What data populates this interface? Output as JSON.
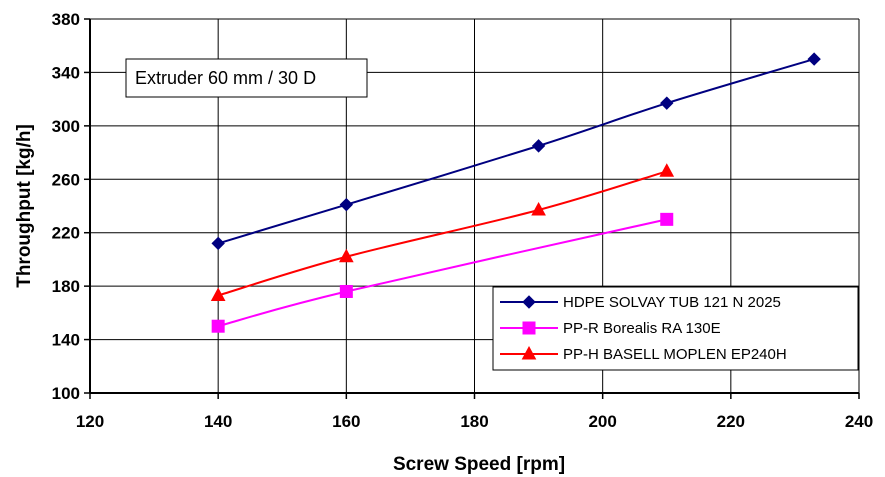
{
  "chart_data": {
    "type": "line",
    "title": "",
    "xlabel": "Screw Speed [rpm]",
    "ylabel": "Throughput [kg/h]",
    "xlim": [
      120,
      240
    ],
    "ylim": [
      100,
      380
    ],
    "xticks": [
      "120",
      "140",
      "160",
      "180",
      "200",
      "220",
      "240"
    ],
    "yticks": [
      "100",
      "140",
      "180",
      "220",
      "260",
      "300",
      "340",
      "380"
    ],
    "grid": true,
    "legend_position": "bottom-right",
    "annotation": "Extruder 60 mm / 30 D",
    "series": [
      {
        "name": "HDPE SOLVAY TUB 121 N 2025",
        "color": "#000080",
        "marker": "diamond",
        "x": [
          140,
          160,
          190,
          210,
          233
        ],
        "y": [
          212,
          241,
          285,
          317,
          350
        ]
      },
      {
        "name": "PP-R Borealis RA 130E",
        "color": "#ff00ff",
        "marker": "square",
        "x": [
          140,
          160,
          210
        ],
        "y": [
          150,
          176,
          230
        ]
      },
      {
        "name": "PP-H BASELL MOPLEN EP240H",
        "color": "#ff0000",
        "marker": "triangle",
        "x": [
          140,
          160,
          190,
          210
        ],
        "y": [
          173,
          202,
          237,
          266
        ]
      }
    ]
  }
}
